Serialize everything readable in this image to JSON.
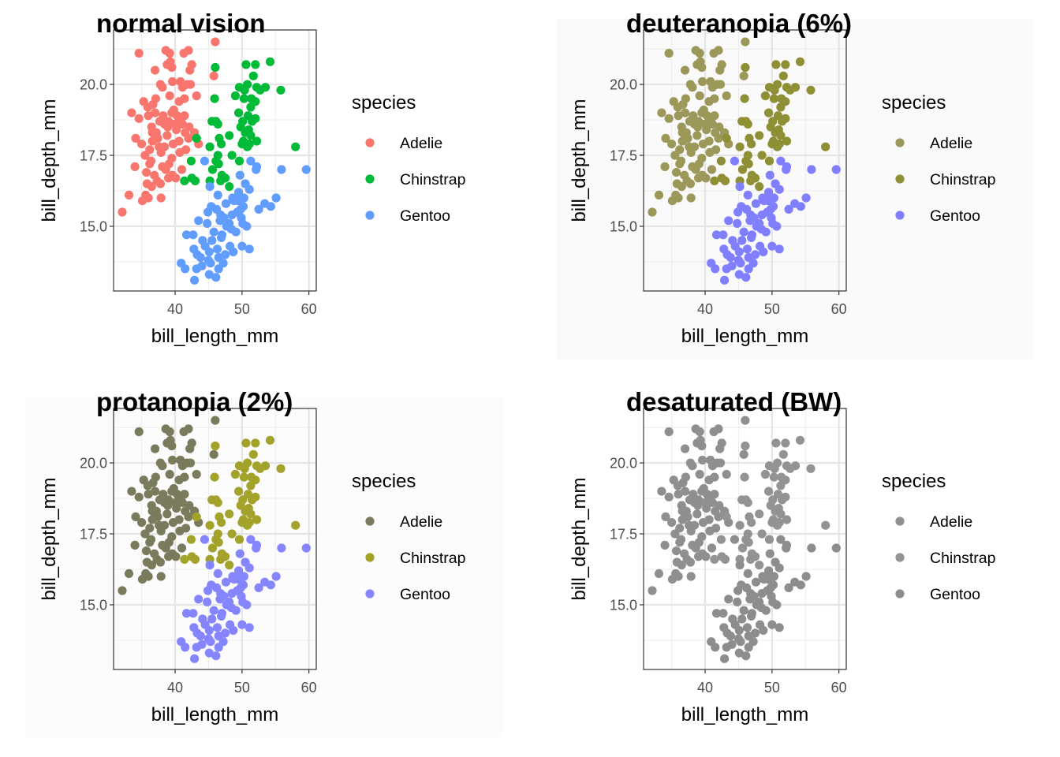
{
  "chart_data": [
    {
      "type": "scatter",
      "title": "normal vision",
      "xlabel": "bill_length_mm",
      "ylabel": "bill_depth_mm",
      "xlim": [
        30.8,
        61.1
      ],
      "ylim": [
        12.72,
        21.92
      ],
      "xticks": [
        40,
        50,
        60
      ],
      "xtick_labels": [
        "40",
        "50",
        "60"
      ],
      "yticks": [
        15.0,
        17.5,
        20.0
      ],
      "ytick_labels": [
        "15.0",
        "17.5",
        "20.0"
      ],
      "grid": true,
      "legend": {
        "title": "species",
        "placement": "right"
      },
      "background": "#ffffff",
      "colors": {
        "Adelie": "#F8766D",
        "Chinstrap": "#00BA38",
        "Gentoo": "#619CFF"
      }
    },
    {
      "type": "scatter",
      "title": "deuteranopia (6%)",
      "xlabel": "bill_length_mm",
      "ylabel": "bill_depth_mm",
      "xlim": [
        30.8,
        61.1
      ],
      "ylim": [
        12.72,
        21.92
      ],
      "xticks": [
        40,
        50,
        60
      ],
      "xtick_labels": [
        "40",
        "50",
        "60"
      ],
      "yticks": [
        15.0,
        17.5,
        20.0
      ],
      "ytick_labels": [
        "15.0",
        "17.5",
        "20.0"
      ],
      "grid": true,
      "legend": {
        "title": "species",
        "placement": "right"
      },
      "background": "#fafafa",
      "colors": {
        "Adelie": "#9C9859",
        "Chinstrap": "#8F8F36",
        "Gentoo": "#7F7FFF"
      }
    },
    {
      "type": "scatter",
      "title": "protanopia (2%)",
      "xlabel": "bill_length_mm",
      "ylabel": "bill_depth_mm",
      "xlim": [
        30.8,
        61.1
      ],
      "ylim": [
        12.72,
        21.92
      ],
      "xticks": [
        40,
        50,
        60
      ],
      "xtick_labels": [
        "40",
        "50",
        "60"
      ],
      "yticks": [
        15.0,
        17.5,
        20.0
      ],
      "ytick_labels": [
        "15.0",
        "17.5",
        "20.0"
      ],
      "grid": true,
      "legend": {
        "title": "species",
        "placement": "right"
      },
      "background": "#fcfcfc",
      "colors": {
        "Adelie": "#7A7A5C",
        "Chinstrap": "#A3A32B",
        "Gentoo": "#8585FF"
      }
    },
    {
      "type": "scatter",
      "title": "desaturated (BW)",
      "xlabel": "bill_length_mm",
      "ylabel": "bill_depth_mm",
      "xlim": [
        30.8,
        61.1
      ],
      "ylim": [
        12.72,
        21.92
      ],
      "xticks": [
        40,
        50,
        60
      ],
      "xtick_labels": [
        "40",
        "50",
        "60"
      ],
      "yticks": [
        15.0,
        17.5,
        20.0
      ],
      "ytick_labels": [
        "15.0",
        "17.5",
        "20.0"
      ],
      "grid": true,
      "legend": {
        "title": "species",
        "placement": "right"
      },
      "background": "#ffffff",
      "colors": {
        "Adelie": "#8F8F8F",
        "Chinstrap": "#939393",
        "Gentoo": "#8D8D8D"
      }
    }
  ],
  "species": [
    "Adelie",
    "Chinstrap",
    "Gentoo"
  ],
  "points": {
    "Adelie": [
      [
        34.6,
        21.1
      ],
      [
        38.6,
        21.2
      ],
      [
        39.2,
        21.1
      ],
      [
        41.3,
        21.1
      ],
      [
        42.0,
        21.2
      ],
      [
        46.0,
        21.5
      ],
      [
        38.8,
        20.7
      ],
      [
        39.5,
        20.6
      ],
      [
        42.5,
        20.7
      ],
      [
        37.0,
        20.5
      ],
      [
        39.3,
        20.8
      ],
      [
        42.2,
        20.5
      ],
      [
        45.8,
        20.3
      ],
      [
        41.1,
        19.9
      ],
      [
        38.1,
        19.9
      ],
      [
        37.8,
        20.0
      ],
      [
        39.6,
        20.1
      ],
      [
        41.8,
        20.0
      ],
      [
        42.3,
        20.0
      ],
      [
        40.8,
        20.1
      ],
      [
        43.2,
        19.6
      ],
      [
        36.7,
        19.3
      ],
      [
        35.3,
        19.4
      ],
      [
        37.1,
        19.5
      ],
      [
        39.2,
        19.6
      ],
      [
        40.6,
        19.4
      ],
      [
        41.4,
        19.5
      ],
      [
        35.9,
        19.2
      ],
      [
        33.5,
        19.0
      ],
      [
        34.6,
        18.8
      ],
      [
        36.0,
        18.9
      ],
      [
        37.7,
        18.7
      ],
      [
        38.2,
        18.9
      ],
      [
        39.8,
        19.1
      ],
      [
        40.3,
        18.9
      ],
      [
        41.1,
        18.6
      ],
      [
        36.5,
        18.5
      ],
      [
        37.2,
        18.3
      ],
      [
        38.9,
        18.5
      ],
      [
        40.2,
        18.4
      ],
      [
        41.5,
        18.3
      ],
      [
        42.1,
        18.5
      ],
      [
        39.0,
        18.7
      ],
      [
        40.9,
        18.8
      ],
      [
        34.1,
        18.1
      ],
      [
        35.0,
        17.9
      ],
      [
        36.6,
        18.0
      ],
      [
        37.6,
        17.8
      ],
      [
        38.8,
        18.2
      ],
      [
        39.7,
        17.9
      ],
      [
        40.6,
        18.0
      ],
      [
        42.0,
        18.1
      ],
      [
        42.9,
        18.3
      ],
      [
        43.5,
        17.9
      ],
      [
        35.5,
        17.5
      ],
      [
        36.4,
        17.3
      ],
      [
        37.9,
        17.6
      ],
      [
        38.1,
        17.1
      ],
      [
        39.5,
        17.4
      ],
      [
        40.7,
        17.6
      ],
      [
        41.6,
        17.7
      ],
      [
        36.2,
        17.2
      ],
      [
        35.7,
        16.9
      ],
      [
        34.0,
        17.1
      ],
      [
        36.9,
        16.8
      ],
      [
        37.3,
        16.6
      ],
      [
        38.6,
        17.0
      ],
      [
        39.6,
        16.8
      ],
      [
        40.1,
        16.7
      ],
      [
        41.0,
        17.0
      ],
      [
        39.0,
        16.7
      ],
      [
        37.8,
        16.5
      ],
      [
        36.5,
        16.4
      ],
      [
        35.8,
        16.5
      ],
      [
        33.1,
        16.1
      ],
      [
        35.1,
        15.9
      ],
      [
        35.6,
        16.1
      ],
      [
        36.0,
        16.0
      ],
      [
        37.9,
        16.0
      ],
      [
        32.1,
        15.5
      ],
      [
        36.2,
        17.7
      ],
      [
        37.4,
        18.1
      ],
      [
        38.4,
        18.6
      ],
      [
        39.1,
        17.2
      ],
      [
        38.4,
        17.8
      ],
      [
        40.0,
        18.6
      ],
      [
        41.4,
        18.9
      ],
      [
        37.0,
        19.0
      ],
      [
        39.5,
        19.0
      ],
      [
        36.6,
        18.3
      ]
    ],
    "Chinstrap": [
      [
        46.0,
        20.6
      ],
      [
        50.6,
        20.7
      ],
      [
        52.0,
        20.7
      ],
      [
        54.2,
        20.8
      ],
      [
        51.7,
        20.3
      ],
      [
        49.6,
        19.9
      ],
      [
        50.8,
        20.0
      ],
      [
        52.2,
        19.9
      ],
      [
        53.5,
        19.9
      ],
      [
        52.7,
        19.8
      ],
      [
        49.0,
        19.6
      ],
      [
        50.3,
        19.5
      ],
      [
        51.4,
        19.5
      ],
      [
        55.8,
        19.8
      ],
      [
        52.0,
        19.4
      ],
      [
        45.9,
        19.5
      ],
      [
        51.3,
        19.2
      ],
      [
        49.5,
        19.0
      ],
      [
        50.9,
        18.9
      ],
      [
        51.5,
        18.7
      ],
      [
        52.0,
        18.8
      ],
      [
        50.1,
        18.7
      ],
      [
        46.1,
        18.7
      ],
      [
        46.4,
        18.6
      ],
      [
        45.5,
        18.7
      ],
      [
        51.0,
        18.4
      ],
      [
        49.8,
        18.5
      ],
      [
        50.5,
        18.3
      ],
      [
        46.6,
        18.1
      ],
      [
        48.1,
        18.2
      ],
      [
        50.2,
        18.0
      ],
      [
        51.3,
        18.2
      ],
      [
        52.2,
        18.0
      ],
      [
        43.2,
        18.1
      ],
      [
        46.9,
        17.9
      ],
      [
        50.0,
        17.9
      ],
      [
        50.8,
        17.8
      ],
      [
        45.2,
        17.8
      ],
      [
        58.0,
        17.8
      ],
      [
        46.4,
        17.5
      ],
      [
        48.5,
        17.5
      ],
      [
        42.4,
        17.3
      ],
      [
        46.1,
        17.3
      ],
      [
        49.6,
        17.3
      ],
      [
        45.6,
        17.0
      ],
      [
        47.0,
        16.8
      ],
      [
        46.8,
        16.6
      ],
      [
        41.4,
        16.6
      ],
      [
        42.5,
        16.7
      ],
      [
        43.0,
        16.6
      ],
      [
        45.2,
        16.6
      ],
      [
        47.5,
        16.7
      ],
      [
        48.1,
        16.4
      ],
      [
        46.5,
        17.2
      ],
      [
        51.1,
        17.9
      ],
      [
        50.4,
        19.8
      ]
    ],
    "Gentoo": [
      [
        44.4,
        17.3
      ],
      [
        51.3,
        17.3
      ],
      [
        52.2,
        17.1
      ],
      [
        55.9,
        17.0
      ],
      [
        59.6,
        17.0
      ],
      [
        52.1,
        17.0
      ],
      [
        49.7,
        16.8
      ],
      [
        45.2,
        16.4
      ],
      [
        50.5,
        16.5
      ],
      [
        51.1,
        16.3
      ],
      [
        49.5,
        16.2
      ],
      [
        48.6,
        16.0
      ],
      [
        46.4,
        16.1
      ],
      [
        55.1,
        16.0
      ],
      [
        47.6,
        15.8
      ],
      [
        48.8,
        15.9
      ],
      [
        50.2,
        15.7
      ],
      [
        49.3,
        15.5
      ],
      [
        53.4,
        15.8
      ],
      [
        54.3,
        15.7
      ],
      [
        52.5,
        15.6
      ],
      [
        45.4,
        15.7
      ],
      [
        46.2,
        15.6
      ],
      [
        44.9,
        15.5
      ],
      [
        46.8,
        15.4
      ],
      [
        48.1,
        15.1
      ],
      [
        50.7,
        15.0
      ],
      [
        49.1,
        14.8
      ],
      [
        43.5,
        15.2
      ],
      [
        45.8,
        14.8
      ],
      [
        46.9,
        14.6
      ],
      [
        47.3,
        15.3
      ],
      [
        48.4,
        14.9
      ],
      [
        50.1,
        15.1
      ],
      [
        49.9,
        15.3
      ],
      [
        42.7,
        14.7
      ],
      [
        44.1,
        14.5
      ],
      [
        45.5,
        14.5
      ],
      [
        46.3,
        14.2
      ],
      [
        47.5,
        14.0
      ],
      [
        48.7,
        14.1
      ],
      [
        50.0,
        14.3
      ],
      [
        51.1,
        14.2
      ],
      [
        43.3,
        14.0
      ],
      [
        44.5,
        14.3
      ],
      [
        45.1,
        14.1
      ],
      [
        46.5,
        13.9
      ],
      [
        47.2,
        13.7
      ],
      [
        45.0,
        13.8
      ],
      [
        41.7,
        14.7
      ],
      [
        42.8,
        14.2
      ],
      [
        43.8,
        13.9
      ],
      [
        44.0,
        13.6
      ],
      [
        46.1,
        13.2
      ],
      [
        43.2,
        13.5
      ],
      [
        42.9,
        13.1
      ],
      [
        40.9,
        13.7
      ],
      [
        41.5,
        13.5
      ],
      [
        45.3,
        13.7
      ],
      [
        45.1,
        13.3
      ],
      [
        46.5,
        13.5
      ],
      [
        47.7,
        15.0
      ],
      [
        46.7,
        15.2
      ],
      [
        48.2,
        14.3
      ],
      [
        49.4,
        15.9
      ],
      [
        50.3,
        16.0
      ],
      [
        47.0,
        14.7
      ],
      [
        44.8,
        15.1
      ],
      [
        49.8,
        15.6
      ],
      [
        48.5,
        15.4
      ]
    ]
  }
}
